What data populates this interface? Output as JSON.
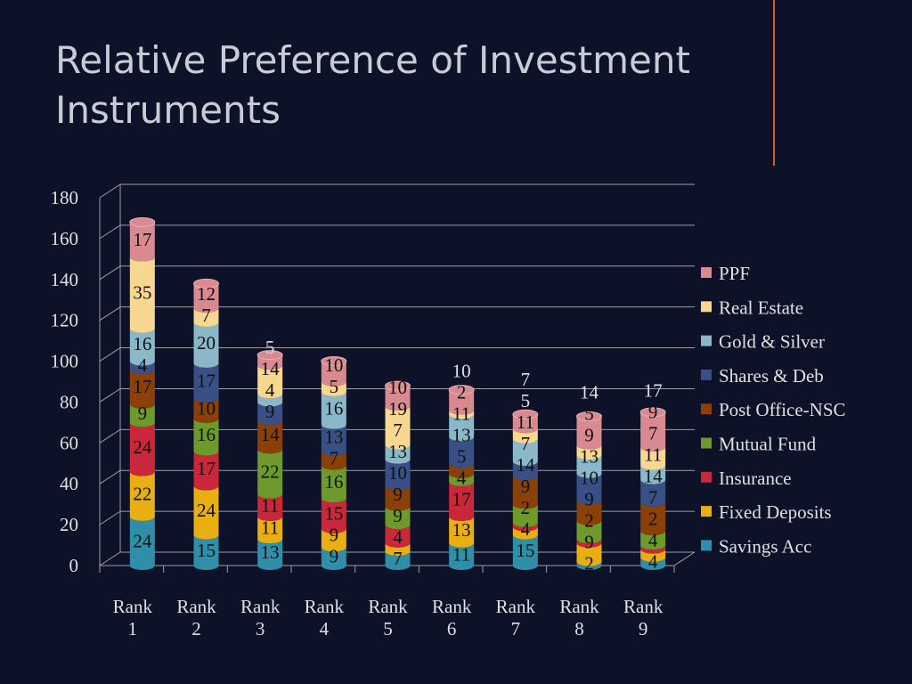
{
  "title": "Relative Preference of Investment Instruments",
  "chart_data": {
    "type": "bar",
    "stacked": true,
    "three_d": true,
    "title": "Relative Preference of Investment Instruments",
    "categories": [
      "Rank 1",
      "Rank 2",
      "Rank 3",
      "Rank 4",
      "Rank 5",
      "Rank 6",
      "Rank 7",
      "Rank 8",
      "Rank 9"
    ],
    "ylim": [
      0,
      180
    ],
    "yticks": [
      0,
      20,
      40,
      60,
      80,
      100,
      120,
      140,
      160,
      180
    ],
    "grid": true,
    "legend_placement": "right",
    "series": [
      {
        "name": "Savings Acc",
        "color": "#2f8fa8",
        "values": [
          24,
          15,
          13,
          9,
          7,
          11,
          15,
          2,
          4
        ]
      },
      {
        "name": "Fixed Deposits",
        "color": "#e8ae12",
        "values": [
          22,
          24,
          11,
          9,
          4,
          13,
          4,
          9,
          4
        ]
      },
      {
        "name": "Insurance",
        "color": "#c8283a",
        "values": [
          24,
          17,
          11,
          15,
          9,
          17,
          2,
          2,
          2
        ]
      },
      {
        "name": "Mutual Fund",
        "color": "#6e9a2c",
        "values": [
          9,
          16,
          22,
          16,
          9,
          4,
          9,
          9,
          7
        ]
      },
      {
        "name": "Post Office-NSC",
        "color": "#8a4006",
        "values": [
          17,
          10,
          14,
          7,
          10,
          5,
          14,
          10,
          14
        ]
      },
      {
        "name": "Shares & Deb",
        "color": "#3a4f86",
        "values": [
          4,
          17,
          9,
          13,
          13,
          13,
          7,
          13,
          11
        ]
      },
      {
        "name": "Gold & Silver",
        "color": "#8ab8c8",
        "values": [
          16,
          20,
          4,
          16,
          7,
          11,
          11,
          9,
          7
        ]
      },
      {
        "name": "Real Estate",
        "color": "#f8d890",
        "values": [
          35,
          7,
          14,
          5,
          19,
          2,
          5,
          5,
          9
        ]
      },
      {
        "name": "PPF",
        "color": "#d88a90",
        "values": [
          17,
          12,
          5,
          10,
          10,
          10,
          7,
          14,
          17
        ]
      }
    ]
  }
}
